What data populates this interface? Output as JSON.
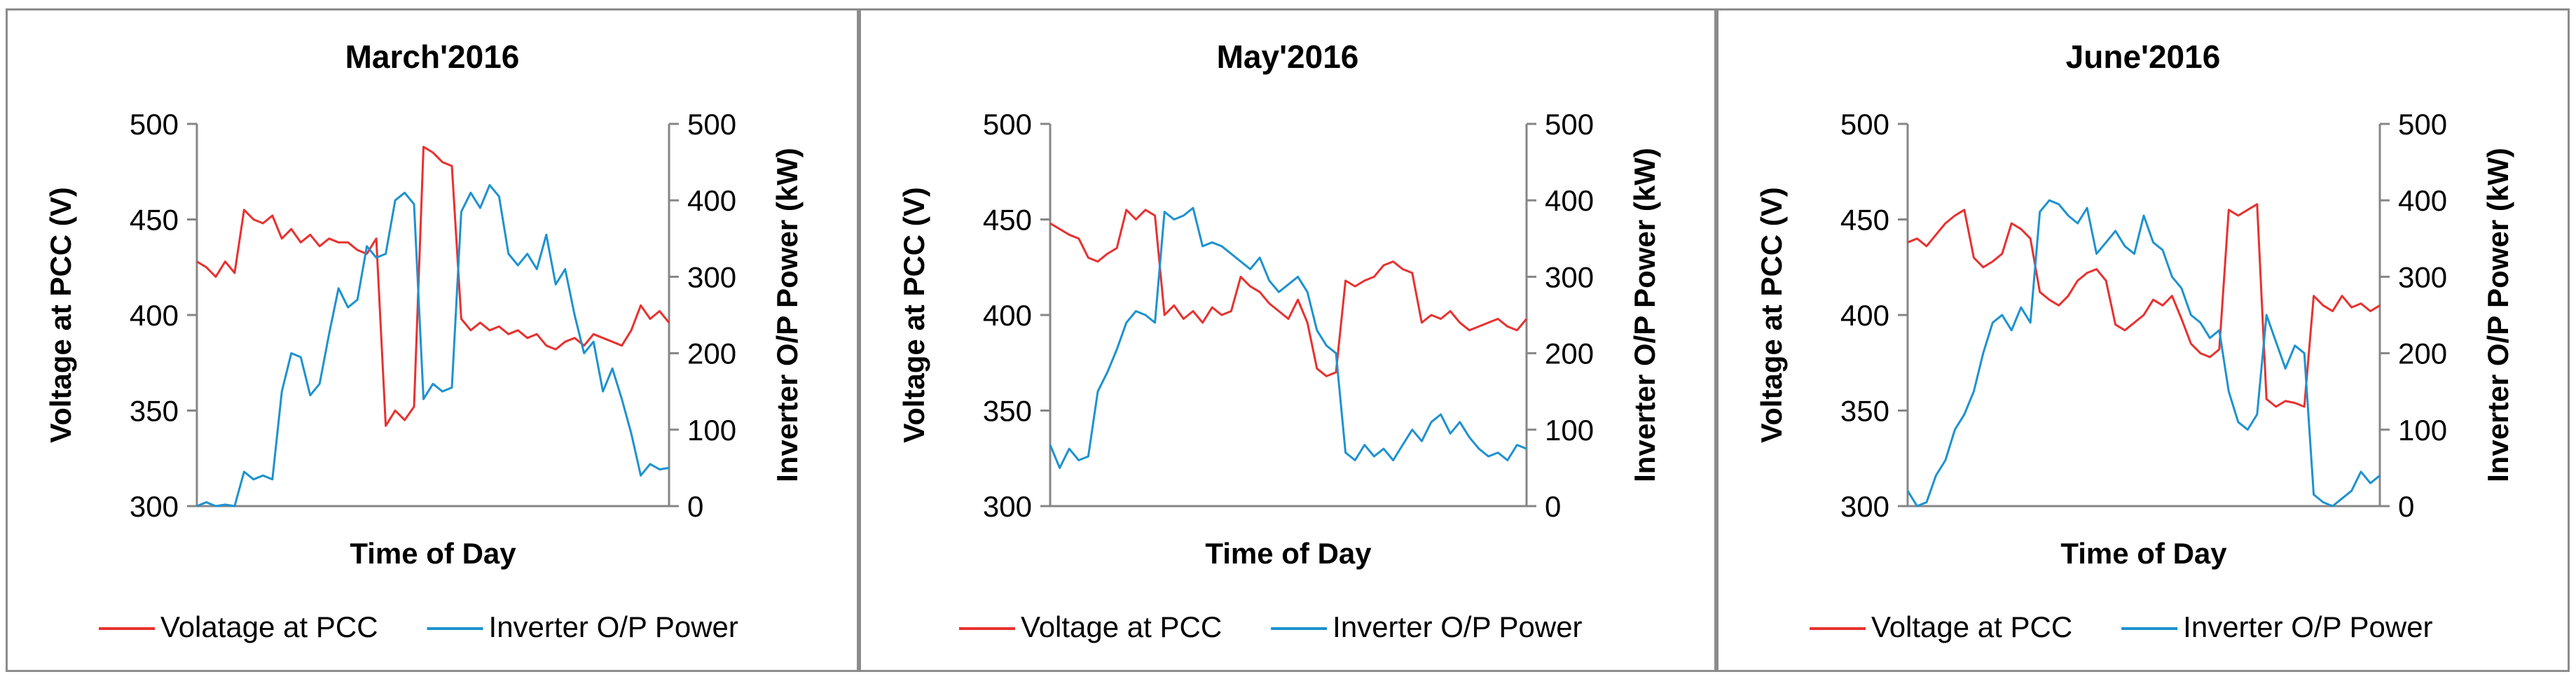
{
  "chart_data": [
    {
      "type": "line",
      "title": "March'2016",
      "xlabel": "Time of Day",
      "ylabel_left": "Voltage at PCC (V)",
      "ylabel_right": "Inverter O/P Power (kW)",
      "ylim_left": [
        300,
        500
      ],
      "ylim_right": [
        0,
        500
      ],
      "yticks_left": [
        300,
        350,
        400,
        450,
        500
      ],
      "yticks_right": [
        0,
        100,
        200,
        300,
        400,
        500
      ],
      "grid": false,
      "legend_position": "bottom",
      "x": [
        0,
        2,
        4,
        6,
        8,
        10,
        12,
        14,
        16,
        18,
        20,
        22,
        24,
        26,
        28,
        30,
        32,
        34,
        36,
        38,
        40,
        42,
        44,
        46,
        48,
        50,
        52,
        54,
        56,
        58,
        60,
        62,
        64,
        66,
        68,
        70,
        72,
        74,
        76,
        78,
        80,
        82,
        84,
        86,
        88,
        90,
        92,
        94,
        96,
        98,
        100
      ],
      "series": [
        {
          "name": "Volatage at PCC",
          "color": "#e8312f",
          "axis": "left",
          "values": [
            428,
            425,
            420,
            428,
            422,
            455,
            450,
            448,
            452,
            440,
            445,
            438,
            442,
            436,
            440,
            438,
            438,
            434,
            432,
            440,
            342,
            350,
            345,
            352,
            488,
            485,
            480,
            478,
            398,
            392,
            396,
            392,
            394,
            390,
            392,
            388,
            390,
            384,
            382,
            386,
            388,
            384,
            390,
            388,
            386,
            384,
            392,
            405,
            398,
            402,
            396
          ]
        },
        {
          "name": "Inverter O/P Power",
          "color": "#1d92d0",
          "axis": "right",
          "values": [
            0,
            5,
            0,
            2,
            0,
            45,
            35,
            40,
            35,
            150,
            200,
            195,
            145,
            160,
            225,
            285,
            260,
            270,
            340,
            325,
            330,
            400,
            410,
            395,
            140,
            160,
            150,
            155,
            385,
            410,
            390,
            420,
            405,
            330,
            315,
            330,
            310,
            355,
            290,
            310,
            250,
            200,
            215,
            150,
            180,
            140,
            95,
            40,
            55,
            48,
            50
          ]
        }
      ]
    },
    {
      "type": "line",
      "title": "May'2016",
      "xlabel": "Time of Day",
      "ylabel_left": "Voltage at PCC (V)",
      "ylabel_right": "Inverter O/P Power (kW)",
      "ylim_left": [
        300,
        500
      ],
      "ylim_right": [
        0,
        500
      ],
      "yticks_left": [
        300,
        350,
        400,
        450,
        500
      ],
      "yticks_right": [
        0,
        100,
        200,
        300,
        400,
        500
      ],
      "grid": false,
      "legend_position": "bottom",
      "x": [
        0,
        2,
        4,
        6,
        8,
        10,
        12,
        14,
        16,
        18,
        20,
        22,
        24,
        26,
        28,
        30,
        32,
        34,
        36,
        38,
        40,
        42,
        44,
        46,
        48,
        50,
        52,
        54,
        56,
        58,
        60,
        62,
        64,
        66,
        68,
        70,
        72,
        74,
        76,
        78,
        80,
        82,
        84,
        86,
        88,
        90,
        92,
        94,
        96,
        98,
        100
      ],
      "series": [
        {
          "name": "Voltage at PCC",
          "color": "#e8312f",
          "axis": "left",
          "values": [
            448,
            445,
            442,
            440,
            430,
            428,
            432,
            435,
            455,
            450,
            455,
            452,
            400,
            405,
            398,
            402,
            396,
            404,
            400,
            402,
            420,
            415,
            412,
            406,
            402,
            398,
            408,
            396,
            372,
            368,
            370,
            418,
            415,
            418,
            420,
            426,
            428,
            424,
            422,
            396,
            400,
            398,
            402,
            396,
            392,
            394,
            396,
            398,
            394,
            392,
            398
          ]
        },
        {
          "name": "Inverter O/P Power",
          "color": "#1d92d0",
          "axis": "right",
          "values": [
            80,
            50,
            75,
            60,
            65,
            150,
            175,
            205,
            240,
            255,
            250,
            240,
            385,
            375,
            380,
            390,
            340,
            345,
            340,
            330,
            320,
            310,
            325,
            295,
            280,
            290,
            300,
            280,
            230,
            210,
            200,
            70,
            60,
            80,
            65,
            75,
            60,
            80,
            100,
            85,
            110,
            120,
            95,
            110,
            90,
            75,
            65,
            70,
            60,
            80,
            75
          ]
        }
      ]
    },
    {
      "type": "line",
      "title": "June'2016",
      "xlabel": "Time of Day",
      "ylabel_left": "Voltage at PCC (V)",
      "ylabel_right": "Inverter O/P Power (kW)",
      "ylim_left": [
        300,
        500
      ],
      "ylim_right": [
        0,
        500
      ],
      "yticks_left": [
        300,
        350,
        400,
        450,
        500
      ],
      "yticks_right": [
        0,
        100,
        200,
        300,
        400,
        500
      ],
      "grid": false,
      "legend_position": "bottom",
      "x": [
        0,
        2,
        4,
        6,
        8,
        10,
        12,
        14,
        16,
        18,
        20,
        22,
        24,
        26,
        28,
        30,
        32,
        34,
        36,
        38,
        40,
        42,
        44,
        46,
        48,
        50,
        52,
        54,
        56,
        58,
        60,
        62,
        64,
        66,
        68,
        70,
        72,
        74,
        76,
        78,
        80,
        82,
        84,
        86,
        88,
        90,
        92,
        94,
        96,
        98,
        100
      ],
      "series": [
        {
          "name": "Voltage at PCC",
          "color": "#e8312f",
          "axis": "left",
          "values": [
            438,
            440,
            436,
            442,
            448,
            452,
            455,
            430,
            425,
            428,
            432,
            448,
            445,
            440,
            412,
            408,
            405,
            410,
            418,
            422,
            424,
            418,
            395,
            392,
            396,
            400,
            408,
            405,
            410,
            398,
            385,
            380,
            378,
            382,
            455,
            452,
            455,
            458,
            356,
            352,
            355,
            354,
            352,
            410,
            405,
            402,
            410,
            404,
            406,
            402,
            405
          ]
        },
        {
          "name": "Inverter O/P Power",
          "color": "#1d92d0",
          "axis": "right",
          "values": [
            20,
            0,
            5,
            40,
            60,
            100,
            120,
            150,
            200,
            240,
            250,
            230,
            260,
            240,
            385,
            400,
            395,
            380,
            370,
            390,
            330,
            345,
            360,
            340,
            330,
            380,
            345,
            335,
            300,
            285,
            250,
            240,
            220,
            230,
            150,
            110,
            100,
            120,
            250,
            215,
            180,
            210,
            200,
            15,
            5,
            0,
            10,
            20,
            45,
            30,
            40
          ]
        }
      ]
    }
  ]
}
